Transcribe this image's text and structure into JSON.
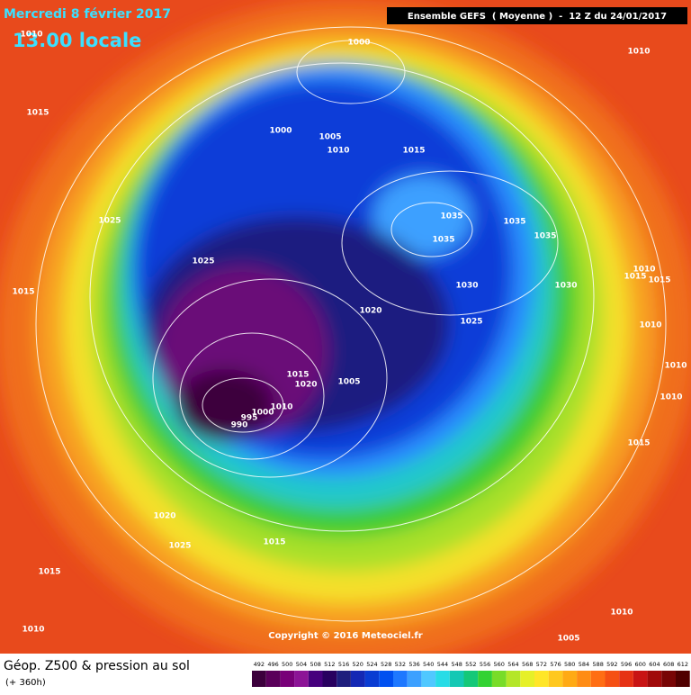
{
  "header": {
    "date": "Mercredi 8 février 2017",
    "time": "13.00 locale",
    "model": "Ensemble GEFS  ( Moyenne )  -  12 Z du 24/01/2017"
  },
  "isobar_labels": [
    "1010",
    "1000",
    "1010",
    "1015",
    "1000",
    "1005",
    "1010",
    "1015",
    "1025",
    "1035",
    "1035",
    "1035",
    "1035",
    "1025",
    "1010",
    "1015",
    "1015",
    "1015",
    "1030",
    "1030",
    "1020",
    "1025",
    "1010",
    "1010",
    "1015",
    "1020",
    "1005",
    "1010",
    "1010",
    "1000",
    "995",
    "990",
    "1015",
    "1020",
    "1025",
    "1015",
    "1015",
    "1010",
    "1010",
    "1005"
  ],
  "copyright": "Copyright © 2016 Meteociel.fr",
  "footer": {
    "title": "Géop. Z500 & pression au sol",
    "subtitle": "(+ 360h)"
  },
  "legend": {
    "values": [
      492,
      496,
      500,
      504,
      508,
      512,
      516,
      520,
      524,
      528,
      532,
      536,
      540,
      544,
      548,
      552,
      556,
      560,
      564,
      568,
      572,
      576,
      580,
      584,
      588,
      592,
      596,
      600,
      604,
      608,
      612
    ],
    "colors": [
      "#3c003c",
      "#5a005a",
      "#780078",
      "#8c1496",
      "#46007d",
      "#28005f",
      "#1e1e7d",
      "#1428b4",
      "#0a3cd2",
      "#0050f0",
      "#1e78ff",
      "#3ca0ff",
      "#50c8ff",
      "#28dce6",
      "#14c8b4",
      "#14c878",
      "#32d232",
      "#78dc28",
      "#b4e628",
      "#e6f028",
      "#ffe628",
      "#ffc81e",
      "#ffaa14",
      "#ff8c14",
      "#ff6e14",
      "#f55014",
      "#e63214",
      "#c81414",
      "#a00a0a",
      "#780505",
      "#500000"
    ]
  }
}
